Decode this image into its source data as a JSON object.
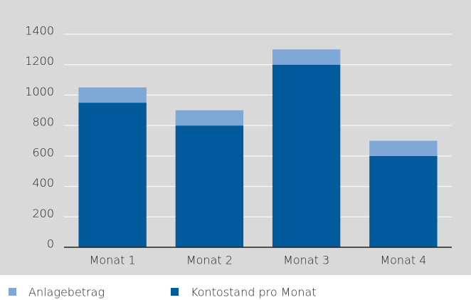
{
  "chart_data": {
    "type": "stacked_bar",
    "categories": [
      "Monat 1",
      "Monat 2",
      "Monat 3",
      "Monat 4"
    ],
    "series": [
      {
        "name": "Anlagebetrag",
        "color": "#7ea8d6",
        "values": [
          100,
          100,
          100,
          100
        ]
      },
      {
        "name": "Kontostand pro Monat",
        "color": "#005a9c",
        "values": [
          950,
          800,
          1200,
          600
        ]
      }
    ],
    "ylim": [
      0,
      1400
    ],
    "yticks": [
      0,
      200,
      400,
      600,
      800,
      1000,
      1200,
      1400
    ],
    "grid": true,
    "legend": "bottom"
  }
}
